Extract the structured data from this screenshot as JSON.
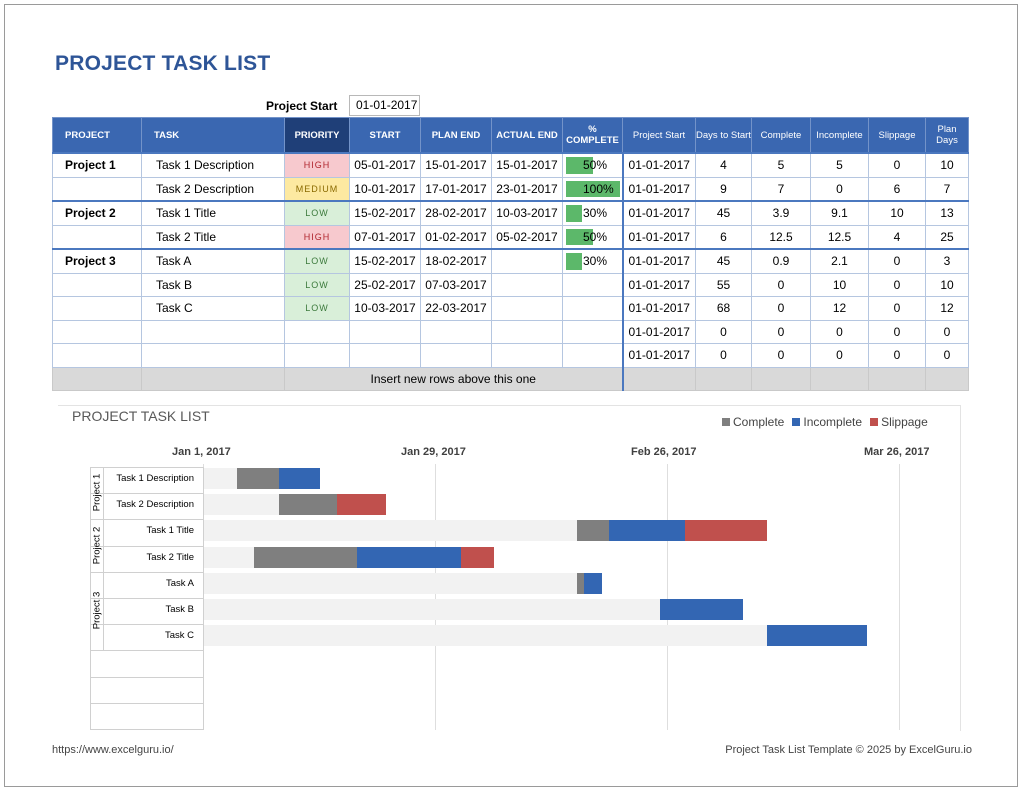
{
  "title": "PROJECT TASK LIST",
  "project_start_label": "Project Start",
  "project_start_value": "01-01-2017",
  "headers": {
    "project": "PROJECT",
    "task": "TASK",
    "priority": "PRIORITY",
    "start": "START",
    "plan_end": "PLAN END",
    "actual_end": "ACTUAL END",
    "pct_complete": "% COMPLETE",
    "r_project_start": "Project Start",
    "r_days_to_start": "Days to Start",
    "r_complete": "Complete",
    "r_incomplete": "Incomplete",
    "r_slippage": "Slippage",
    "r_plan_days": "Plan Days"
  },
  "rows": [
    {
      "project": "Project 1",
      "task": "Task 1 Description",
      "priority": "HIGH",
      "start": "05-01-2017",
      "plan_end": "15-01-2017",
      "actual_end": "15-01-2017",
      "pct": "50%",
      "pct_value": 0.5,
      "ps": "01-01-2017",
      "days": "4",
      "complete": "5",
      "incomplete": "5",
      "slippage": "0",
      "plan_days": "10"
    },
    {
      "project": "",
      "task": "Task 2 Description",
      "priority": "MEDIUM",
      "start": "10-01-2017",
      "plan_end": "17-01-2017",
      "actual_end": "23-01-2017",
      "pct": "100%",
      "pct_value": 1.0,
      "ps": "01-01-2017",
      "days": "9",
      "complete": "7",
      "incomplete": "0",
      "slippage": "6",
      "plan_days": "7"
    },
    {
      "project": "Project 2",
      "task": "Task 1 Title",
      "priority": "LOW",
      "start": "15-02-2017",
      "plan_end": "28-02-2017",
      "actual_end": "10-03-2017",
      "pct": "30%",
      "pct_value": 0.3,
      "ps": "01-01-2017",
      "days": "45",
      "complete": "3.9",
      "incomplete": "9.1",
      "slippage": "10",
      "plan_days": "13"
    },
    {
      "project": "",
      "task": "Task 2 Title",
      "priority": "HIGH",
      "start": "07-01-2017",
      "plan_end": "01-02-2017",
      "actual_end": "05-02-2017",
      "pct": "50%",
      "pct_value": 0.5,
      "ps": "01-01-2017",
      "days": "6",
      "complete": "12.5",
      "incomplete": "12.5",
      "slippage": "4",
      "plan_days": "25"
    },
    {
      "project": "Project 3",
      "task": "Task A",
      "priority": "LOW",
      "start": "15-02-2017",
      "plan_end": "18-02-2017",
      "actual_end": "",
      "pct": "30%",
      "pct_value": 0.3,
      "ps": "01-01-2017",
      "days": "45",
      "complete": "0.9",
      "incomplete": "2.1",
      "slippage": "0",
      "plan_days": "3"
    },
    {
      "project": "",
      "task": "Task B",
      "priority": "LOW",
      "start": "25-02-2017",
      "plan_end": "07-03-2017",
      "actual_end": "",
      "pct": "",
      "pct_value": 0,
      "ps": "01-01-2017",
      "days": "55",
      "complete": "0",
      "incomplete": "10",
      "slippage": "0",
      "plan_days": "10"
    },
    {
      "project": "",
      "task": "Task C",
      "priority": "LOW",
      "start": "10-03-2017",
      "plan_end": "22-03-2017",
      "actual_end": "",
      "pct": "",
      "pct_value": 0,
      "ps": "01-01-2017",
      "days": "68",
      "complete": "0",
      "incomplete": "12",
      "slippage": "0",
      "plan_days": "12"
    },
    {
      "project": "",
      "task": "",
      "priority": "",
      "start": "",
      "plan_end": "",
      "actual_end": "",
      "pct": "",
      "pct_value": 0,
      "ps": "01-01-2017",
      "days": "0",
      "complete": "0",
      "incomplete": "0",
      "slippage": "0",
      "plan_days": "0"
    },
    {
      "project": "",
      "task": "",
      "priority": "",
      "start": "",
      "plan_end": "",
      "actual_end": "",
      "pct": "",
      "pct_value": 0,
      "ps": "01-01-2017",
      "days": "0",
      "complete": "0",
      "incomplete": "0",
      "slippage": "0",
      "plan_days": "0"
    }
  ],
  "insert_row_text": "Insert new rows above this one",
  "colors": {
    "header": "#3a67b1",
    "complete": "#7f7f7f",
    "incomplete": "#3366b3",
    "slippage": "#c0504d",
    "title": "#2e5597"
  },
  "chart_data": {
    "type": "bar",
    "orientation": "horizontal-stacked",
    "title": "PROJECT TASK LIST",
    "legend": [
      "Complete",
      "Incomplete",
      "Slippage"
    ],
    "legend_position": "top-right",
    "x_tick_labels": [
      "Jan 1, 2017",
      "Jan 29, 2017",
      "Feb 26, 2017",
      "Mar 26, 2017"
    ],
    "xlim_days": [
      0,
      84
    ],
    "groups": [
      {
        "name": "Project 1",
        "tasks": [
          "Task 1 Description",
          "Task 2 Description"
        ]
      },
      {
        "name": "Project 2",
        "tasks": [
          "Task 1 Title",
          "Task 2 Title"
        ]
      },
      {
        "name": "Project 3",
        "tasks": [
          "Task A",
          "Task B",
          "Task C"
        ]
      }
    ],
    "tasks": [
      {
        "name": "Task 1 Description",
        "days_to_start": 4,
        "complete": 5,
        "incomplete": 5,
        "slippage": 0
      },
      {
        "name": "Task 2 Description",
        "days_to_start": 9,
        "complete": 7,
        "incomplete": 0,
        "slippage": 6
      },
      {
        "name": "Task 1 Title",
        "days_to_start": 45,
        "complete": 3.9,
        "incomplete": 9.1,
        "slippage": 10
      },
      {
        "name": "Task 2 Title",
        "days_to_start": 6,
        "complete": 12.5,
        "incomplete": 12.5,
        "slippage": 4
      },
      {
        "name": "Task A",
        "days_to_start": 45,
        "complete": 0.9,
        "incomplete": 2.1,
        "slippage": 0
      },
      {
        "name": "Task B",
        "days_to_start": 55,
        "complete": 0,
        "incomplete": 10,
        "slippage": 0
      },
      {
        "name": "Task C",
        "days_to_start": 68,
        "complete": 0,
        "incomplete": 12,
        "slippage": 0
      }
    ]
  },
  "footer_left": "https://www.excelguru.io/",
  "footer_right": "Project Task List Template © 2025 by ExcelGuru.io"
}
